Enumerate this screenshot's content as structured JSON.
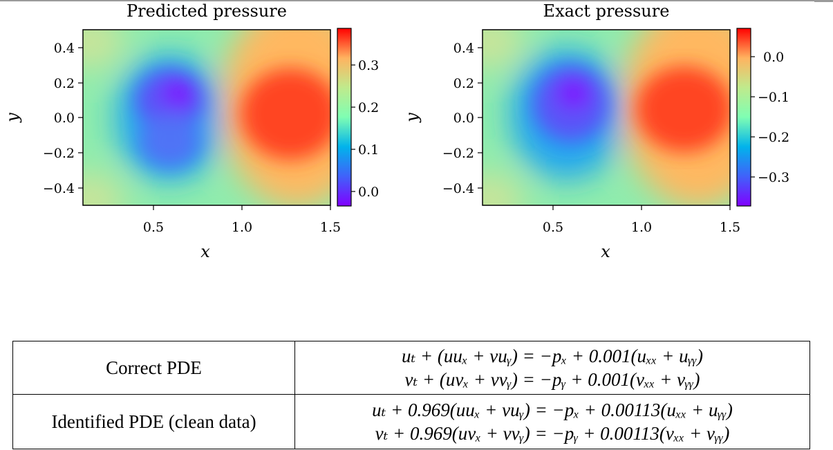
{
  "chart_data": [
    {
      "type": "heatmap",
      "title": "Predicted pressure",
      "xlabel": "x",
      "ylabel": "y",
      "xlim": [
        0.1,
        1.5
      ],
      "ylim": [
        -0.5,
        0.5
      ],
      "x_ticks": [
        "0.5",
        "1.0",
        "1.5"
      ],
      "y_ticks": [
        "0.4",
        "0.2",
        "0.0",
        "−0.2",
        "−0.4"
      ],
      "colorbar": {
        "range": [
          -0.035,
          0.38
        ],
        "ticks": [
          "0.0",
          "0.1",
          "0.2",
          "0.3"
        ]
      },
      "colormap": "rainbow"
    },
    {
      "type": "heatmap",
      "title": "Exact pressure",
      "xlabel": "x",
      "ylabel": "y",
      "xlim": [
        0.1,
        1.5
      ],
      "ylim": [
        -0.5,
        0.5
      ],
      "x_ticks": [
        "0.5",
        "1.0",
        "1.5"
      ],
      "y_ticks": [
        "0.4",
        "0.2",
        "0.0",
        "−0.2",
        "−0.4"
      ],
      "colorbar": {
        "range": [
          -0.39,
          0.07
        ],
        "ticks": [
          "0.0",
          "−0.1",
          "−0.2",
          "−0.3"
        ]
      },
      "colormap": "rainbow"
    }
  ],
  "table": {
    "rows": [
      {
        "label": "Correct PDE",
        "eq1": "uₜ + (uuₓ + vuᵧ) = −pₓ + 0.001(uₓₓ + uᵧᵧ)",
        "eq2": "vₜ + (uvₓ + vvᵧ) = −pᵧ + 0.001(vₓₓ + vᵧᵧ)"
      },
      {
        "label": "Identified PDE (clean data)",
        "eq1": "uₜ + 0.969(uuₓ + vuᵧ) = −pₓ + 0.00113(uₓₓ + uᵧᵧ)",
        "eq2": "vₜ + 0.969(uvₓ + vvᵧ) = −pᵧ + 0.00113(vₓₓ + vᵧᵧ)"
      }
    ]
  }
}
